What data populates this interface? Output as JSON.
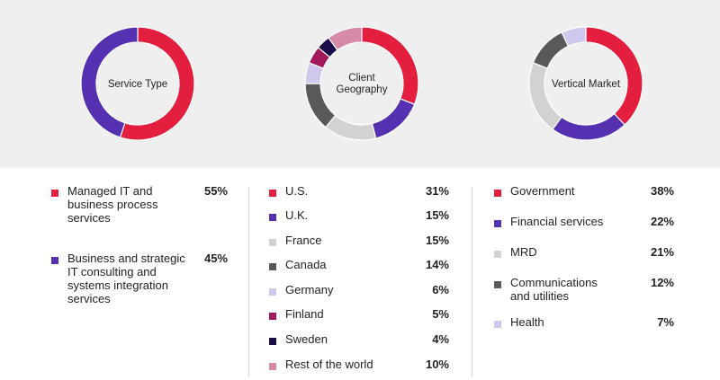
{
  "chart_data": [
    {
      "type": "pie",
      "title": "Service Type",
      "categories": [
        "Managed IT and business process services",
        "Business and strategic IT consulting and systems integration services"
      ],
      "values": [
        55,
        45
      ],
      "value_labels": [
        "55%",
        "45%"
      ],
      "colors": [
        "#e41e3f",
        "#5530b0"
      ]
    },
    {
      "type": "pie",
      "title": "Client Geography",
      "categories": [
        "U.S.",
        "U.K.",
        "France",
        "Canada",
        "Germany",
        "Finland",
        "Sweden",
        "Rest of the world"
      ],
      "values": [
        31,
        15,
        15,
        14,
        6,
        5,
        4,
        10
      ],
      "value_labels": [
        "31%",
        "15%",
        "15%",
        "14%",
        "6%",
        "5%",
        "4%",
        "10%"
      ],
      "colors": [
        "#e41e3f",
        "#5530b0",
        "#d2d2d2",
        "#595959",
        "#cfc8ec",
        "#a3185a",
        "#1b0c4a",
        "#d68aa8"
      ]
    },
    {
      "type": "pie",
      "title": "Vertical Market",
      "categories": [
        "Government",
        "Financial services",
        "MRD",
        "Communications and utilities",
        "Health"
      ],
      "values": [
        38,
        22,
        21,
        12,
        7
      ],
      "value_labels": [
        "38%",
        "22%",
        "21%",
        "12%",
        "7%"
      ],
      "colors": [
        "#e41e3f",
        "#5530b0",
        "#d2d2d2",
        "#595959",
        "#cfc8ec"
      ]
    }
  ]
}
